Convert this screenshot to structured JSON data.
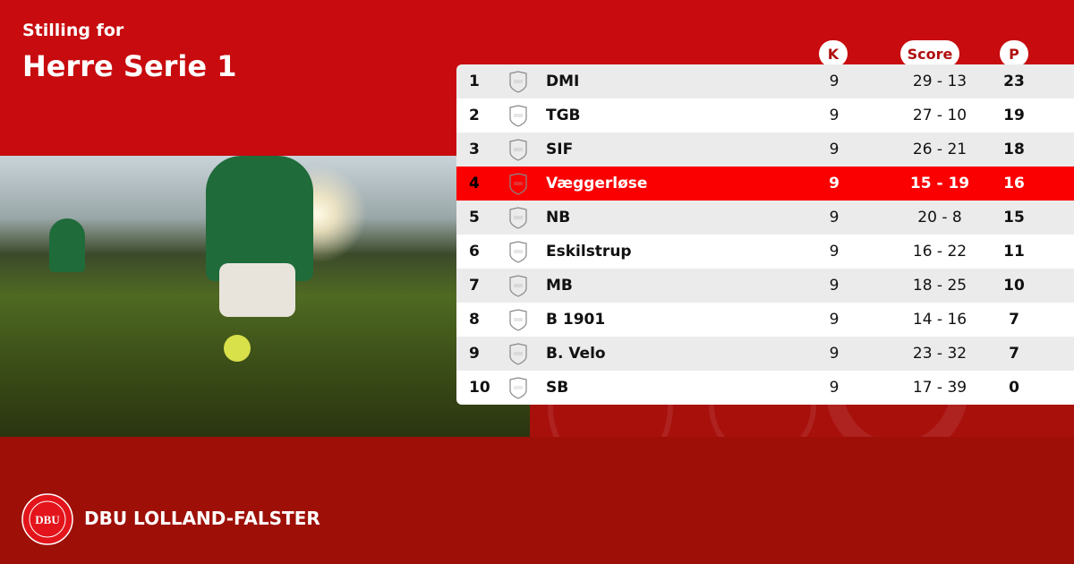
{
  "header": {
    "subtitle": "Stilling for",
    "title": "Herre Serie 1"
  },
  "columns": {
    "k": "K",
    "score": "Score",
    "p": "P"
  },
  "rows": [
    {
      "pos": "1",
      "team": "DMI",
      "k": "9",
      "score": "29 - 13",
      "p": "23"
    },
    {
      "pos": "2",
      "team": "TGB",
      "k": "9",
      "score": "27 - 10",
      "p": "19"
    },
    {
      "pos": "3",
      "team": "SIF",
      "k": "9",
      "score": "26 - 21",
      "p": "18"
    },
    {
      "pos": "4",
      "team": "Væggerløse",
      "k": "9",
      "score": "15 - 19",
      "p": "16",
      "highlight": true
    },
    {
      "pos": "5",
      "team": "NB",
      "k": "9",
      "score": "20 - 8",
      "p": "15"
    },
    {
      "pos": "6",
      "team": "Eskilstrup",
      "k": "9",
      "score": "16 - 22",
      "p": "11"
    },
    {
      "pos": "7",
      "team": "MB",
      "k": "9",
      "score": "18 - 25",
      "p": "10"
    },
    {
      "pos": "8",
      "team": "B 1901",
      "k": "9",
      "score": "14 - 16",
      "p": "7"
    },
    {
      "pos": "9",
      "team": "B. Velo",
      "k": "9",
      "score": "23 - 32",
      "p": "7"
    },
    {
      "pos": "10",
      "team": "SB",
      "k": "9",
      "score": "17 - 39",
      "p": "0"
    }
  ],
  "footer": {
    "brand": "DBU LOLLAND-FALSTER",
    "logo_text": "DBU DANSK BOLDSPIL UNION 1889"
  },
  "colors": {
    "primary": "#c70b0e",
    "highlight": "#fb0000",
    "footer": "#9e0f07"
  },
  "icons": {
    "crest": "club-crest-placeholder-icon"
  }
}
